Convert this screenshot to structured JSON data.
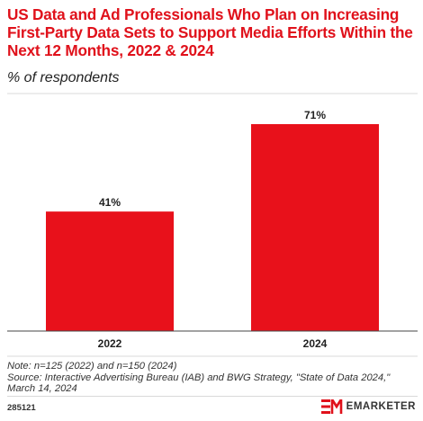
{
  "title": "US Data and Ad Professionals Who Plan on Increasing First-Party Data Sets to Support Media Efforts Within the Next 12 Months, 2022 & 2024",
  "subtitle": "% of respondents",
  "chart_data": {
    "type": "bar",
    "categories": [
      "2022",
      "2024"
    ],
    "values": [
      41,
      71
    ],
    "data_labels": [
      "41%",
      "71%"
    ],
    "ylim": [
      0,
      100
    ],
    "bar_color": "#e8111b",
    "grid": false,
    "legend": "none"
  },
  "notes": [
    "Note: n=125 (2022) and n=150 (2024)",
    "Source: Interactive Advertising Bureau (IAB) and BWG Strategy, \"State of Data 2024,\"",
    "March 14, 2024"
  ],
  "footer": {
    "chart_id": "285121",
    "brand_name": "EMARKETER",
    "brand_icon": "em-logo-icon"
  },
  "colors": {
    "title": "#e0111b",
    "bar": "#e8111b"
  }
}
